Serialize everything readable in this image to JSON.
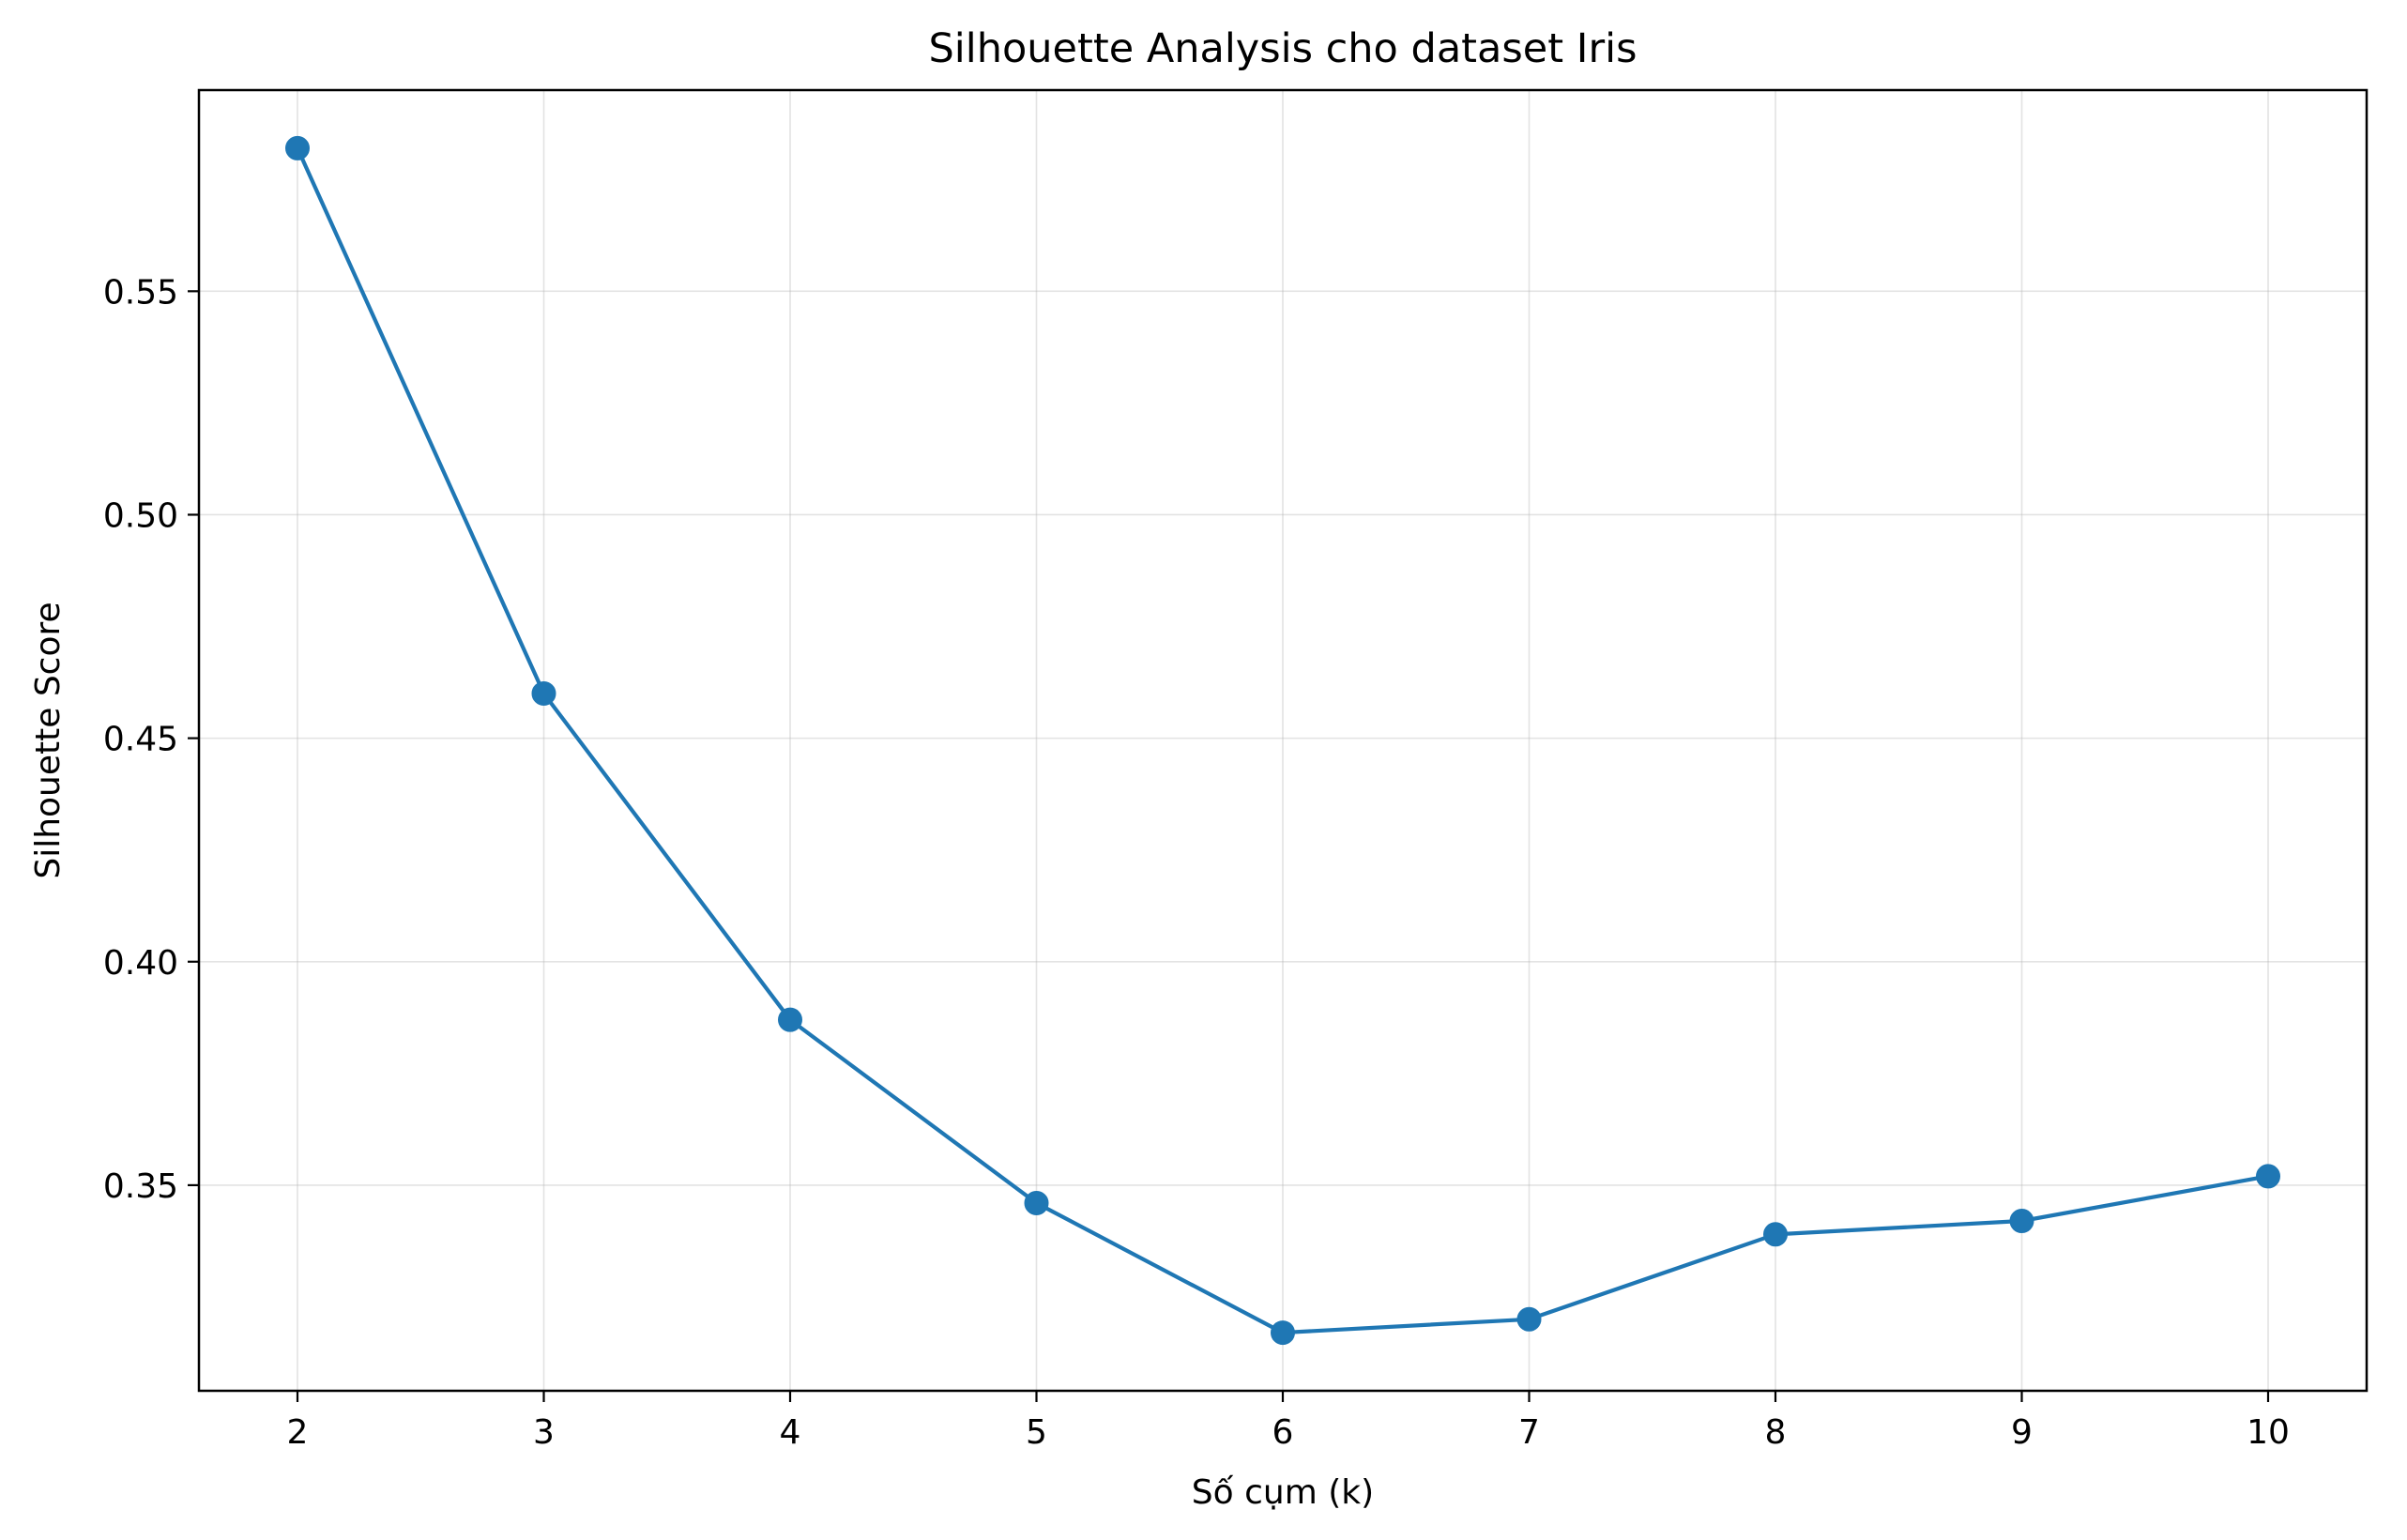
{
  "chart_data": {
    "type": "line",
    "title": "Silhouette Analysis cho dataset Iris",
    "xlabel": "Số cụm (k)",
    "ylabel": "Silhouette Score",
    "x": [
      2,
      3,
      4,
      5,
      6,
      7,
      8,
      9,
      10
    ],
    "series": [
      {
        "values": [
          0.582,
          0.46,
          0.387,
          0.346,
          0.317,
          0.32,
          0.339,
          0.342,
          0.352
        ],
        "color": "#1f77b4",
        "marker": "circle"
      }
    ],
    "xlim": [
      1.6,
      10.4
    ],
    "ylim": [
      0.304,
      0.595
    ],
    "xticks": [
      2,
      3,
      4,
      5,
      6,
      7,
      8,
      9,
      10
    ],
    "yticks": [
      0.35,
      0.4,
      0.45,
      0.5,
      0.55
    ],
    "ytick_labels": [
      "0.35",
      "0.40",
      "0.45",
      "0.50",
      "0.55"
    ],
    "grid": true,
    "legend": "none"
  }
}
